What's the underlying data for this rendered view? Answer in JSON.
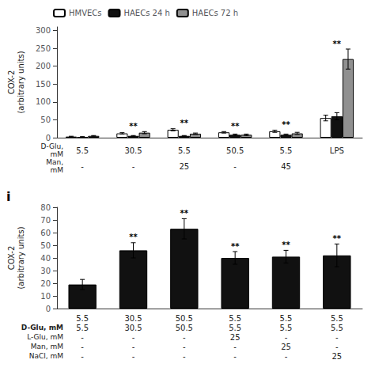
{
  "chart_data": [
    {
      "type": "bar",
      "categories": [
        "5.5",
        "30.5",
        "5.5",
        "50.5",
        "5.5",
        "LPS"
      ],
      "x_labels_sub": [
        "-",
        "-",
        "25",
        "-",
        "45",
        null
      ],
      "x_row_labels": [
        "D-Glu,\nmM",
        "Man,\nmM"
      ],
      "y_label": "COX-2\n(arbitrary units)",
      "series": [
        {
          "name": "HMVECs",
          "color": "#FFFFFF",
          "values": [
            3,
            12,
            22,
            15,
            18,
            55
          ],
          "errors": [
            1,
            2,
            3,
            2,
            3,
            8
          ]
        },
        {
          "name": "HAECs 24 h",
          "color": "#111111",
          "values": [
            2,
            5,
            5,
            8,
            8,
            60
          ],
          "errors": [
            1,
            1,
            1,
            2,
            2,
            10
          ]
        },
        {
          "name": "HAECs 72 h",
          "color": "#909090",
          "values": [
            5,
            14,
            11,
            8,
            12,
            220
          ],
          "errors": [
            1,
            3,
            2,
            2,
            3,
            28
          ]
        }
      ],
      "significance": [
        null,
        "**",
        "**",
        "**",
        "**",
        "**"
      ],
      "ylim": [
        0,
        310
      ],
      "yticks": [
        0,
        50,
        100,
        150,
        200,
        250,
        300
      ],
      "grid": false,
      "legend": "upper left"
    },
    {
      "type": "bar",
      "panel_label": "i",
      "categories": [
        "5.5",
        "30.5",
        "50.5",
        "5.5",
        "5.5",
        "5.5"
      ],
      "y_label": "COX-2\n(arbitrary units)",
      "series": [
        {
          "color": "#111111",
          "values": [
            19,
            46,
            63,
            40,
            41,
            42
          ],
          "errors": [
            4,
            6,
            8,
            5,
            5,
            9
          ]
        }
      ],
      "significance": [
        null,
        "**",
        "**",
        "**",
        "**",
        "**"
      ],
      "table": [
        {
          "label": "D-Glu, mM",
          "values": [
            "5.5",
            "30.5",
            "50.5",
            "5.5",
            "5.5",
            "5.5"
          ]
        },
        {
          "label": "L-Glu, mM",
          "values": [
            "-",
            "-",
            "-",
            "25",
            "-",
            "-"
          ]
        },
        {
          "label": "Man, mM",
          "values": [
            "-",
            "-",
            "-",
            "-",
            "25",
            "-"
          ]
        },
        {
          "label": "NaCl, mM",
          "values": [
            "-",
            "-",
            "-",
            "-",
            "-",
            "25"
          ]
        }
      ],
      "ylim": [
        0,
        80
      ],
      "yticks": [
        0,
        10,
        20,
        30,
        40,
        50,
        60,
        70,
        80
      ],
      "grid": false
    }
  ]
}
